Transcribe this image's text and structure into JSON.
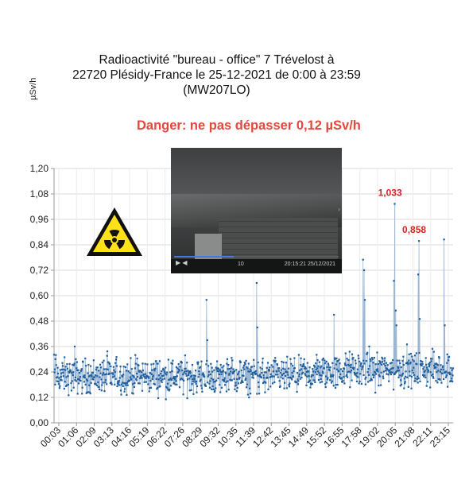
{
  "chart_data": {
    "type": "line",
    "title_lines": [
      "Radioactivité \"bureau - office\"  7 Trévelost à",
      "22720 Plésidy-France le 25-12-2021 de 0:00 à 23:59",
      "(MW207LO)"
    ],
    "ylabel": "µSv/h",
    "annotation": "Danger: ne pas dépasser 0,12 µSv/h",
    "ylim": [
      0,
      1.2
    ],
    "yticks": [
      "0,00",
      "0,12",
      "0,24",
      "0,36",
      "0,48",
      "0,60",
      "0,72",
      "0,84",
      "0,96",
      "1,08",
      "1,20"
    ],
    "xticks": [
      "00:03",
      "01:06",
      "02:09",
      "03:13",
      "04:16",
      "05:19",
      "06:22",
      "07:26",
      "08:29",
      "09:32",
      "10:35",
      "11:39",
      "12:42",
      "13:45",
      "14:49",
      "15:52",
      "16:55",
      "17:58",
      "19:02",
      "20:05",
      "21:08",
      "22:11",
      "23:15"
    ],
    "xlim_hours": [
      0.05,
      24.0
    ],
    "grid": true,
    "baseline_mean": 0.22,
    "baseline_spread": 0.05,
    "peaks": [
      {
        "x_hours": 0.15,
        "y": 0.32
      },
      {
        "x_hours": 1.3,
        "y": 0.36
      },
      {
        "x_hours": 9.2,
        "y": 0.58
      },
      {
        "x_hours": 9.25,
        "y": 0.39
      },
      {
        "x_hours": 12.2,
        "y": 0.66
      },
      {
        "x_hours": 12.25,
        "y": 0.45
      },
      {
        "x_hours": 16.85,
        "y": 0.51
      },
      {
        "x_hours": 18.6,
        "y": 0.77
      },
      {
        "x_hours": 18.65,
        "y": 0.72
      },
      {
        "x_hours": 18.7,
        "y": 0.58
      },
      {
        "x_hours": 20.5,
        "y": 1.033
      },
      {
        "x_hours": 20.45,
        "y": 0.67
      },
      {
        "x_hours": 20.55,
        "y": 0.53
      },
      {
        "x_hours": 20.6,
        "y": 0.46
      },
      {
        "x_hours": 21.95,
        "y": 0.858
      },
      {
        "x_hours": 21.9,
        "y": 0.7
      },
      {
        "x_hours": 22.0,
        "y": 0.49
      },
      {
        "x_hours": 23.45,
        "y": 0.865
      },
      {
        "x_hours": 23.5,
        "y": 0.46
      }
    ],
    "data_labels": [
      {
        "x_hours": 20.5,
        "y": 1.033,
        "text": "1,033"
      },
      {
        "x_hours": 21.95,
        "y": 0.858,
        "text": "0,858"
      }
    ],
    "series_color": "#1f5f9e",
    "label_color": "#e02020"
  },
  "overlay": {
    "camera_timestamp": "20:15:21  25/12/2021",
    "camera_counter": "10",
    "warning_icon": "radiation-warning-icon",
    "warning_color": "#ffe11a"
  }
}
